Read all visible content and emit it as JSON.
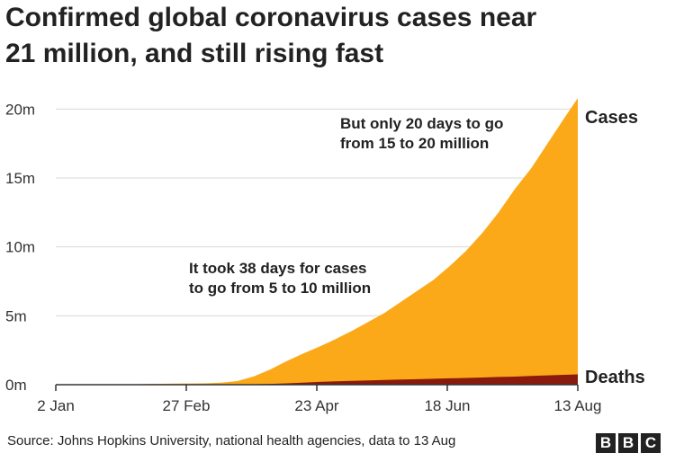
{
  "title_line1": "Confirmed global coronavirus cases near",
  "title_line2": "21 million, and still rising fast",
  "source": "Source: Johns Hopkins University, national health agencies, data to 13 Aug",
  "logo": [
    "B",
    "B",
    "C"
  ],
  "colors": {
    "cases": "#fba919",
    "deaths": "#8b1a0e",
    "grid": "#d9d9d9",
    "axis": "#333333"
  },
  "chart_data": {
    "type": "area",
    "x_unit": "date 2020",
    "x": [
      "22 Jan",
      "2 Feb",
      "13 Feb",
      "24 Feb",
      "6 Mar",
      "13 Mar",
      "20 Mar",
      "27 Mar",
      "3 Apr",
      "10 Apr",
      "17 Apr",
      "24 Apr",
      "1 May",
      "8 May",
      "15 May",
      "22 May",
      "29 May",
      "5 Jun",
      "12 Jun",
      "19 Jun",
      "26 Jun",
      "3 Jul",
      "10 Jul",
      "17 Jul",
      "24 Jul",
      "31 Jul",
      "7 Aug",
      "13 Aug"
    ],
    "series": [
      {
        "name": "Cases",
        "values": [
          0.0006,
          0.017,
          0.06,
          0.08,
          0.1,
          0.145,
          0.27,
          0.6,
          1.1,
          1.7,
          2.25,
          2.75,
          3.3,
          3.9,
          4.55,
          5.2,
          6.0,
          6.8,
          7.6,
          8.6,
          9.7,
          11.0,
          12.5,
          14.2,
          15.7,
          17.5,
          19.3,
          20.8
        ]
      },
      {
        "name": "Deaths",
        "values": [
          0.0,
          0.0004,
          0.0014,
          0.0027,
          0.0034,
          0.0054,
          0.011,
          0.03,
          0.06,
          0.1,
          0.15,
          0.2,
          0.24,
          0.28,
          0.31,
          0.34,
          0.37,
          0.4,
          0.43,
          0.46,
          0.49,
          0.52,
          0.56,
          0.59,
          0.64,
          0.68,
          0.72,
          0.75
        ]
      }
    ],
    "ylim": [
      0,
      21
    ],
    "y_ticks": [
      0,
      5,
      10,
      15,
      20
    ],
    "y_tick_labels": [
      "0m",
      "5m",
      "10m",
      "15m",
      "20m"
    ],
    "x_ticks": [
      "2 Jan",
      "27 Feb",
      "23 Apr",
      "18 Jun",
      "13 Aug"
    ],
    "x_range": [
      "2 Jan",
      "13 Aug"
    ],
    "grid": true,
    "labels": [
      "Cases",
      "Deaths"
    ],
    "annotations": [
      {
        "lines": [
          "But only 20 days to go",
          "from 15 to 20 million"
        ]
      },
      {
        "lines": [
          "It took 38 days for cases",
          "to go from 5 to 10 million"
        ]
      }
    ]
  }
}
